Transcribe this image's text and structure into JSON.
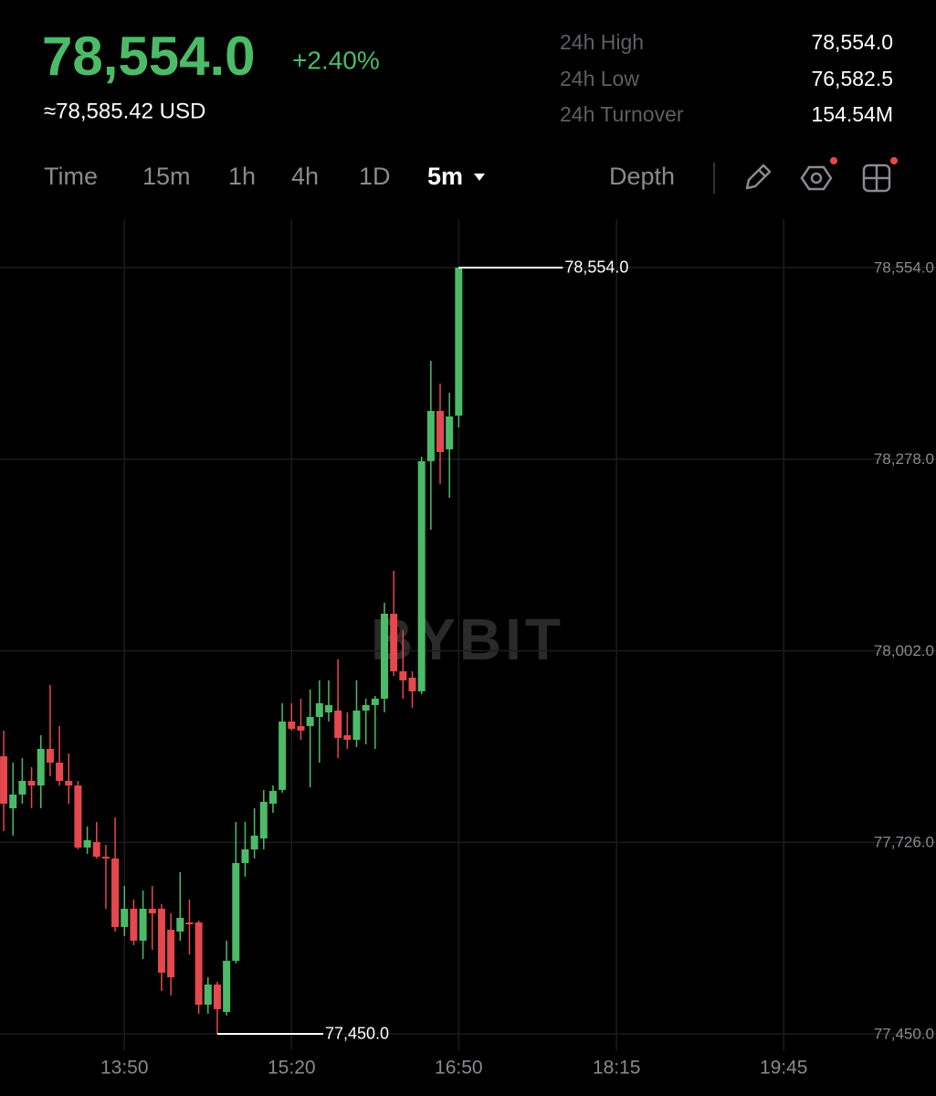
{
  "header": {
    "price": "78,554.0",
    "change": "+2.40%",
    "approx": "≈78,585.42 USD",
    "stats": [
      {
        "label": "24h High",
        "value": "78,554.0"
      },
      {
        "label": "24h Low",
        "value": "76,582.5"
      },
      {
        "label": "24h Turnover",
        "value": "154.54M"
      }
    ]
  },
  "toolbar": {
    "tabs": [
      "Time",
      "15m",
      "1h",
      "4h",
      "1D",
      "5m",
      "Depth"
    ]
  },
  "chart_data": {
    "type": "candlestick",
    "watermark": "BYBIT",
    "up_color": "#4cbb68",
    "down_color": "#e5484d",
    "grid": true,
    "xlim": [
      763,
      1267
    ],
    "ylim": [
      77426.3,
      78623.7
    ],
    "xticks": [
      {
        "value": 830,
        "label": "13:50"
      },
      {
        "value": 920,
        "label": "15:20"
      },
      {
        "value": 1010,
        "label": "16:50"
      },
      {
        "value": 1095,
        "label": "18:15"
      },
      {
        "value": 1185,
        "label": "19:45"
      }
    ],
    "yticks": [
      {
        "value": 78554,
        "label": "78,554.0"
      },
      {
        "value": 78278,
        "label": "78,278.0"
      },
      {
        "value": 78002,
        "label": "78,002.0"
      },
      {
        "value": 77726,
        "label": "77,726.0"
      },
      {
        "value": 77450,
        "label": "77,450.0"
      }
    ],
    "max_label": {
      "value": 78554,
      "label": "78,554.0"
    },
    "min_label": {
      "value": 77450,
      "label": "77,450.0"
    },
    "x": [
      765,
      770,
      775,
      780,
      785,
      790,
      795,
      800,
      805,
      810,
      815,
      820,
      825,
      830,
      835,
      840,
      845,
      850,
      855,
      860,
      865,
      870,
      875,
      880,
      885,
      890,
      895,
      900,
      905,
      910,
      915,
      920,
      925,
      930,
      935,
      940,
      945,
      950,
      955,
      960,
      965,
      970,
      975,
      980,
      985,
      990,
      995,
      1000,
      1005,
      1010
    ],
    "open": [
      77850.1,
      77775,
      77794.8,
      77814.5,
      77807.9,
      77860.6,
      77840.8,
      77814.5,
      77807.9,
      77718.5,
      77726.4,
      77705.3,
      77702.7,
      77604,
      77630.3,
      77584.3,
      77630.3,
      77630.3,
      77600,
      77597.4,
      77610.6,
      77610.6,
      77492.1,
      77521.1,
      77481.6,
      77555.3,
      77696.1,
      77715.8,
      77731.6,
      77781.6,
      77801.4,
      77900,
      77893.5,
      77893.5,
      77906.6,
      77913.2,
      77915.8,
      77880.3,
      77873.7,
      77915.8,
      77923.7,
      77932.9,
      78055.3,
      77972.4,
      77963.2,
      77943.5,
      78275.1,
      78347.4,
      78292.2,
      78340.8
    ],
    "high": [
      77886.9,
      77840.8,
      77847.4,
      77834.3,
      77880.3,
      77952.7,
      77893.5,
      77854,
      77814.5,
      77748.7,
      77755.3,
      77722.4,
      77761.9,
      77663.2,
      77643.5,
      77656.6,
      77663.2,
      77636.9,
      77623.7,
      77682.9,
      77643.5,
      77613.2,
      77531.6,
      77525,
      77584.3,
      77755.3,
      77755.3,
      77775,
      77801.4,
      77807.9,
      77926.4,
      77926.4,
      77932.9,
      77946.1,
      77959.3,
      77959.3,
      77989.5,
      77913.2,
      77959.3,
      77932.9,
      77936.9,
      78071.1,
      78117.2,
      78031.6,
      77972.4,
      78281.6,
      78419.8,
      78386.9,
      78373.7,
      78554
    ],
    "low": [
      77742.1,
      77735.6,
      77781.6,
      77775,
      77775,
      77821.1,
      77807.9,
      77781.6,
      77715.8,
      77709.3,
      77702.7,
      77630.3,
      77597.4,
      77590.8,
      77577.7,
      77557.9,
      77571.1,
      77511.9,
      77505.3,
      77584.3,
      77564.5,
      77479,
      77479,
      77450,
      77476.4,
      77551.4,
      77676.4,
      77702.7,
      77715.8,
      77768.5,
      77797.4,
      77886.9,
      77873.7,
      77805.3,
      77840.8,
      77900,
      77847.4,
      77860.6,
      77863.2,
      77867.1,
      77860.6,
      77913.2,
      77965.8,
      77932.9,
      77919.8,
      77939.5,
      78176.4,
      78242.2,
      78222.4,
      78323.7
    ],
    "close": [
      77781.6,
      77794.8,
      77814.5,
      77807.9,
      77860.6,
      77840.8,
      77814.5,
      77807.9,
      77718.5,
      77729,
      77705.3,
      77702.7,
      77604,
      77630.3,
      77584.3,
      77630.3,
      77623.7,
      77538.2,
      77531.6,
      77617.2,
      77607.9,
      77492.1,
      77521.1,
      77485.6,
      77555.3,
      77696.1,
      77715.8,
      77735.6,
      77784.3,
      77800,
      77900,
      77889.5,
      77886.9,
      77906.6,
      77926.4,
      77923.7,
      77876.4,
      77873.7,
      77915.8,
      77923.7,
      77932.9,
      78055.3,
      77972.4,
      77959.3,
      77943.5,
      78275.1,
      78347.4,
      78288.2,
      78339.5,
      78554
    ]
  }
}
